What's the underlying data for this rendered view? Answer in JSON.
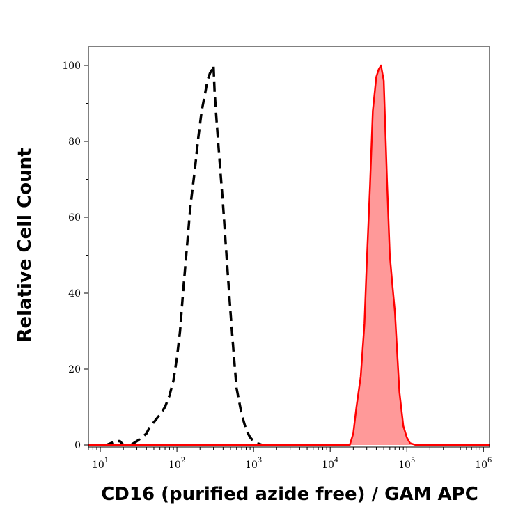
{
  "chart_data": {
    "type": "area",
    "xlabel": "CD16 (purified azide free) / GAM APC",
    "ylabel": "Relative Cell Count",
    "x_scale": "log",
    "xlim": [
      7,
      1200000
    ],
    "ylim": [
      0,
      105
    ],
    "x_ticks": [
      {
        "base": "10",
        "exp": "1",
        "value": 10
      },
      {
        "base": "10",
        "exp": "2",
        "value": 100
      },
      {
        "base": "10",
        "exp": "3",
        "value": 1000
      },
      {
        "base": "10",
        "exp": "4",
        "value": 10000
      },
      {
        "base": "10",
        "exp": "5",
        "value": 100000
      },
      {
        "base": "10",
        "exp": "6",
        "value": 1000000
      }
    ],
    "y_ticks": [
      {
        "label": "0",
        "value": 0
      },
      {
        "label": "20",
        "value": 20
      },
      {
        "label": "40",
        "value": 40
      },
      {
        "label": "60",
        "value": 60
      },
      {
        "label": "80",
        "value": 80
      },
      {
        "label": "100",
        "value": 100
      }
    ],
    "grid": false,
    "series": [
      {
        "style": "dashed-black",
        "color": "#000000",
        "x": [
          7,
          12,
          16,
          18,
          20,
          25,
          30,
          35,
          40,
          45,
          50,
          60,
          70,
          80,
          90,
          100,
          110,
          120,
          135,
          150,
          170,
          190,
          210,
          230,
          250,
          270,
          290,
          300,
          310,
          330,
          360,
          400,
          450,
          500,
          550,
          600,
          700,
          800,
          900,
          1000,
          1100,
          1300,
          2000
        ],
        "y": [
          0,
          0,
          1,
          1,
          0,
          0,
          1,
          2,
          3,
          5,
          6,
          8,
          10,
          13,
          17,
          23,
          30,
          40,
          52,
          63,
          72,
          81,
          88,
          92,
          96,
          98,
          99,
          100,
          93,
          85,
          75,
          63,
          48,
          35,
          24,
          15,
          8,
          4,
          2,
          1,
          0.5,
          0,
          0
        ]
      },
      {
        "style": "filled-red",
        "color": "#ff0000",
        "fill": "#ff9999",
        "x": [
          7,
          10000,
          15000,
          18000,
          20000,
          22000,
          25000,
          28000,
          30000,
          33000,
          36000,
          40000,
          43000,
          46000,
          50000,
          55000,
          60000,
          65000,
          70000,
          75000,
          80000,
          90000,
          100000,
          110000,
          130000,
          1200000
        ],
        "y": [
          0,
          0,
          0,
          0,
          3,
          10,
          18,
          32,
          48,
          68,
          88,
          97,
          99,
          100,
          96,
          70,
          50,
          42,
          35,
          24,
          14,
          5,
          2,
          0.5,
          0,
          0
        ]
      }
    ]
  }
}
